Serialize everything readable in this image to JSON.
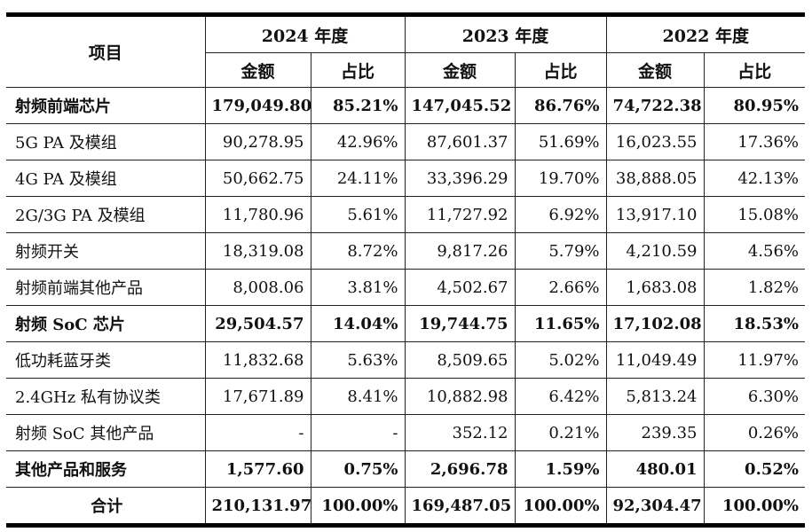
{
  "header": {
    "item_label": "项目",
    "years": [
      "2024 年度",
      "2023 年度",
      "2022 年度"
    ],
    "amount_label": "金额",
    "ratio_label": "占比"
  },
  "rows": [
    {
      "label": "射频前端芯片",
      "bold": true,
      "values": [
        "179,049.80",
        "85.21%",
        "147,045.52",
        "86.76%",
        "74,722.38",
        "80.95%"
      ]
    },
    {
      "label": "5G PA 及模组",
      "bold": false,
      "values": [
        "90,278.95",
        "42.96%",
        "87,601.37",
        "51.69%",
        "16,023.55",
        "17.36%"
      ]
    },
    {
      "label": "4G PA 及模组",
      "bold": false,
      "values": [
        "50,662.75",
        "24.11%",
        "33,396.29",
        "19.70%",
        "38,888.05",
        "42.13%"
      ]
    },
    {
      "label": "2G/3G PA 及模组",
      "bold": false,
      "values": [
        "11,780.96",
        "5.61%",
        "11,727.92",
        "6.92%",
        "13,917.10",
        "15.08%"
      ]
    },
    {
      "label": "射频开关",
      "bold": false,
      "values": [
        "18,319.08",
        "8.72%",
        "9,817.26",
        "5.79%",
        "4,210.59",
        "4.56%"
      ]
    },
    {
      "label": "射频前端其他产品",
      "bold": false,
      "values": [
        "8,008.06",
        "3.81%",
        "4,502.67",
        "2.66%",
        "1,683.08",
        "1.82%"
      ]
    },
    {
      "label": "射频 SoC 芯片",
      "bold": true,
      "values": [
        "29,504.57",
        "14.04%",
        "19,744.75",
        "11.65%",
        "17,102.08",
        "18.53%"
      ]
    },
    {
      "label": "低功耗蓝牙类",
      "bold": false,
      "values": [
        "11,832.68",
        "5.63%",
        "8,509.65",
        "5.02%",
        "11,049.49",
        "11.97%"
      ]
    },
    {
      "label": "2.4GHz 私有协议类",
      "bold": false,
      "values": [
        "17,671.89",
        "8.41%",
        "10,882.98",
        "6.42%",
        "5,813.24",
        "6.30%"
      ]
    },
    {
      "label": "射频 SoC 其他产品",
      "bold": false,
      "values": [
        "-",
        "-",
        "352.12",
        "0.21%",
        "239.35",
        "0.26%"
      ]
    },
    {
      "label": "其他产品和服务",
      "bold": true,
      "values": [
        "1,577.60",
        "0.75%",
        "2,696.78",
        "1.59%",
        "480.01",
        "0.52%"
      ]
    },
    {
      "label": "合计",
      "bold": true,
      "total": true,
      "values": [
        "210,131.97",
        "100.00%",
        "169,487.05",
        "100.00%",
        "92,304.47",
        "100.00%"
      ]
    }
  ]
}
